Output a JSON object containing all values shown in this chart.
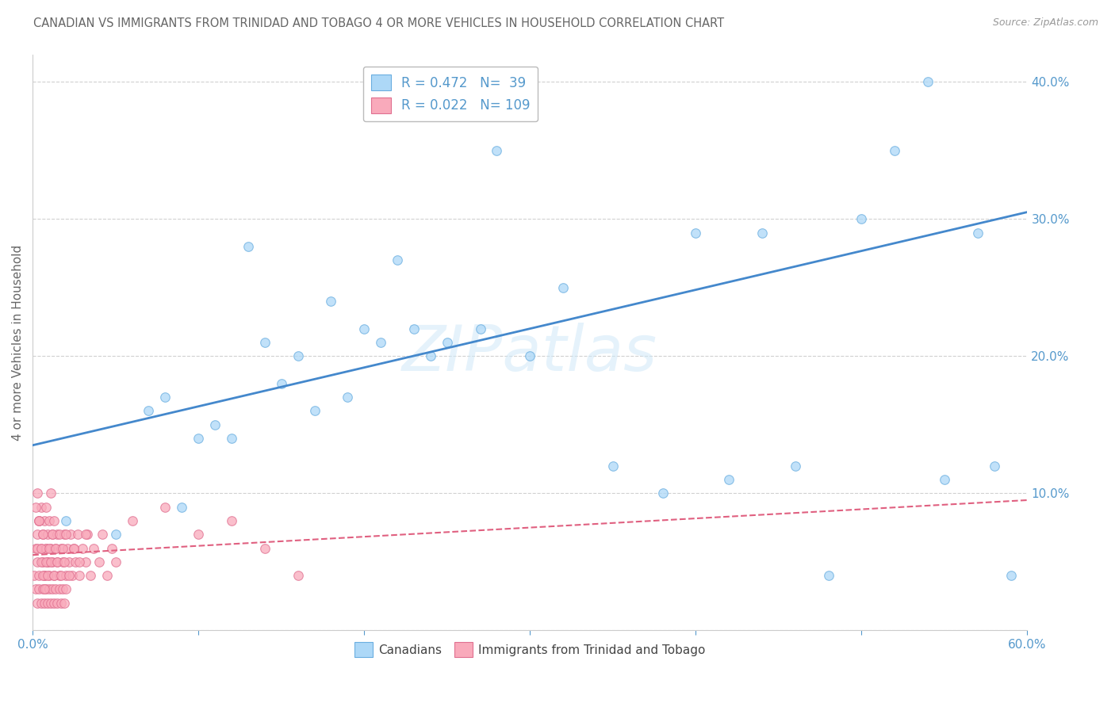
{
  "title": "CANADIAN VS IMMIGRANTS FROM TRINIDAD AND TOBAGO 4 OR MORE VEHICLES IN HOUSEHOLD CORRELATION CHART",
  "source": "Source: ZipAtlas.com",
  "ylabel": "4 or more Vehicles in Household",
  "xlim": [
    0.0,
    0.6
  ],
  "ylim": [
    0.0,
    0.42
  ],
  "xticks": [
    0.0,
    0.1,
    0.2,
    0.3,
    0.4,
    0.5,
    0.6
  ],
  "xtick_labels": [
    "0.0%",
    "",
    "",
    "",
    "",
    "",
    "60.0%"
  ],
  "yticks": [
    0.0,
    0.1,
    0.2,
    0.3,
    0.4
  ],
  "ytick_labels": [
    "",
    "10.0%",
    "20.0%",
    "30.0%",
    "40.0%"
  ],
  "watermark": "ZIPatlas",
  "legend_blue_r": "0.472",
  "legend_blue_n": "39",
  "legend_pink_r": "0.022",
  "legend_pink_n": "109",
  "legend_blue_label": "Canadians",
  "legend_pink_label": "Immigrants from Trinidad and Tobago",
  "blue_color": "#ADD8F7",
  "pink_color": "#F9AABB",
  "blue_edge_color": "#6AAEE0",
  "pink_edge_color": "#E07090",
  "blue_line_color": "#4488CC",
  "pink_line_color": "#E06080",
  "background_color": "#FFFFFF",
  "grid_color": "#CCCCCC",
  "title_color": "#666666",
  "axis_label_color": "#666666",
  "tick_color": "#5599CC",
  "blue_trend_x": [
    0.0,
    0.6
  ],
  "blue_trend_y": [
    0.135,
    0.305
  ],
  "pink_trend_x": [
    0.0,
    0.6
  ],
  "pink_trend_y": [
    0.055,
    0.095
  ],
  "blue_scatter_x": [
    0.02,
    0.05,
    0.07,
    0.08,
    0.09,
    0.1,
    0.11,
    0.12,
    0.13,
    0.14,
    0.15,
    0.16,
    0.17,
    0.18,
    0.19,
    0.2,
    0.21,
    0.22,
    0.23,
    0.24,
    0.25,
    0.27,
    0.28,
    0.3,
    0.32,
    0.35,
    0.38,
    0.4,
    0.42,
    0.44,
    0.46,
    0.48,
    0.5,
    0.52,
    0.54,
    0.55,
    0.57,
    0.58,
    0.59
  ],
  "blue_scatter_y": [
    0.08,
    0.07,
    0.16,
    0.17,
    0.09,
    0.14,
    0.15,
    0.14,
    0.28,
    0.21,
    0.18,
    0.2,
    0.16,
    0.24,
    0.17,
    0.22,
    0.21,
    0.27,
    0.22,
    0.2,
    0.21,
    0.22,
    0.35,
    0.2,
    0.25,
    0.12,
    0.1,
    0.29,
    0.11,
    0.29,
    0.12,
    0.04,
    0.3,
    0.35,
    0.4,
    0.11,
    0.29,
    0.12,
    0.04
  ],
  "pink_scatter_x": [
    0.001,
    0.002,
    0.002,
    0.003,
    0.003,
    0.004,
    0.004,
    0.005,
    0.005,
    0.006,
    0.006,
    0.007,
    0.007,
    0.008,
    0.008,
    0.009,
    0.009,
    0.01,
    0.01,
    0.011,
    0.011,
    0.012,
    0.012,
    0.013,
    0.013,
    0.014,
    0.015,
    0.015,
    0.016,
    0.017,
    0.018,
    0.019,
    0.02,
    0.021,
    0.022,
    0.023,
    0.024,
    0.025,
    0.026,
    0.027,
    0.028,
    0.03,
    0.032,
    0.033,
    0.035,
    0.037,
    0.04,
    0.042,
    0.045,
    0.048,
    0.05,
    0.003,
    0.004,
    0.005,
    0.006,
    0.007,
    0.008,
    0.009,
    0.01,
    0.011,
    0.012,
    0.013,
    0.014,
    0.015,
    0.016,
    0.017,
    0.018,
    0.019,
    0.02,
    0.003,
    0.004,
    0.005,
    0.006,
    0.007,
    0.008,
    0.009,
    0.002,
    0.003,
    0.004,
    0.005,
    0.006,
    0.007,
    0.008,
    0.009,
    0.01,
    0.011,
    0.012,
    0.013,
    0.014,
    0.015,
    0.016,
    0.017,
    0.018,
    0.019,
    0.02,
    0.022,
    0.025,
    0.028,
    0.032,
    0.06,
    0.08,
    0.1,
    0.12,
    0.14,
    0.16
  ],
  "pink_scatter_y": [
    0.04,
    0.06,
    0.03,
    0.07,
    0.05,
    0.08,
    0.04,
    0.06,
    0.09,
    0.05,
    0.07,
    0.04,
    0.08,
    0.06,
    0.09,
    0.05,
    0.07,
    0.04,
    0.08,
    0.06,
    0.1,
    0.05,
    0.07,
    0.04,
    0.08,
    0.06,
    0.05,
    0.07,
    0.04,
    0.06,
    0.05,
    0.07,
    0.04,
    0.06,
    0.05,
    0.07,
    0.04,
    0.06,
    0.05,
    0.07,
    0.04,
    0.06,
    0.05,
    0.07,
    0.04,
    0.06,
    0.05,
    0.07,
    0.04,
    0.06,
    0.05,
    0.02,
    0.03,
    0.02,
    0.03,
    0.02,
    0.03,
    0.02,
    0.03,
    0.02,
    0.03,
    0.02,
    0.03,
    0.02,
    0.03,
    0.02,
    0.03,
    0.02,
    0.03,
    0.06,
    0.08,
    0.05,
    0.07,
    0.04,
    0.06,
    0.05,
    0.09,
    0.1,
    0.08,
    0.06,
    0.04,
    0.03,
    0.05,
    0.04,
    0.06,
    0.05,
    0.07,
    0.04,
    0.06,
    0.05,
    0.07,
    0.04,
    0.06,
    0.05,
    0.07,
    0.04,
    0.06,
    0.05,
    0.07,
    0.08,
    0.09,
    0.07,
    0.08,
    0.06,
    0.04
  ]
}
